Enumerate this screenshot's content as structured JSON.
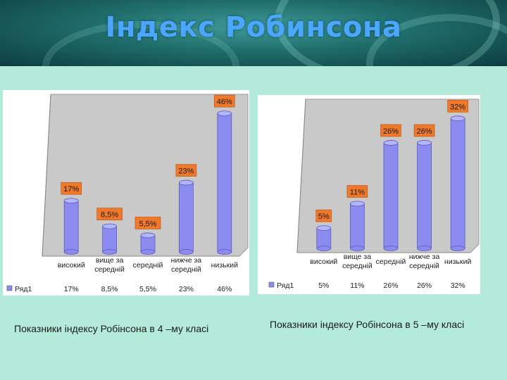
{
  "title": "Індекс Робинсона",
  "captions": {
    "left": "Показники індексу Робінсона в 4 –му класі",
    "right": "Показники індексу Робінсона в 5 –му класі"
  },
  "colors": {
    "bar": "#8c8cf0",
    "label_box": "#f0782a",
    "plot_bg": "#c9c9c9"
  },
  "chart_data": [
    {
      "type": "bar",
      "categories": [
        "високий",
        "вище за середній",
        "середній",
        "нижче за середній",
        "низький"
      ],
      "series": [
        {
          "name": "Ряд1",
          "values": [
            17,
            8.5,
            5.5,
            23,
            46
          ]
        }
      ],
      "data_labels": [
        "17%",
        "8,5%",
        "5,5%",
        "23%",
        "46%"
      ],
      "table_values": [
        "17%",
        "8,5%",
        "5,5%",
        "23%",
        "46%"
      ],
      "ylim": [
        0,
        50
      ]
    },
    {
      "type": "bar",
      "categories": [
        "високий",
        "вище за середній",
        "середній",
        "нижче за середній",
        "низький"
      ],
      "series": [
        {
          "name": "Ряд1",
          "values": [
            5,
            11,
            26,
            26,
            32
          ]
        }
      ],
      "data_labels": [
        "5%",
        "11%",
        "26%",
        "26%",
        "32%"
      ],
      "table_values": [
        "5%",
        "11%",
        "26%",
        "26%",
        "32%"
      ],
      "ylim": [
        0,
        35
      ]
    }
  ]
}
